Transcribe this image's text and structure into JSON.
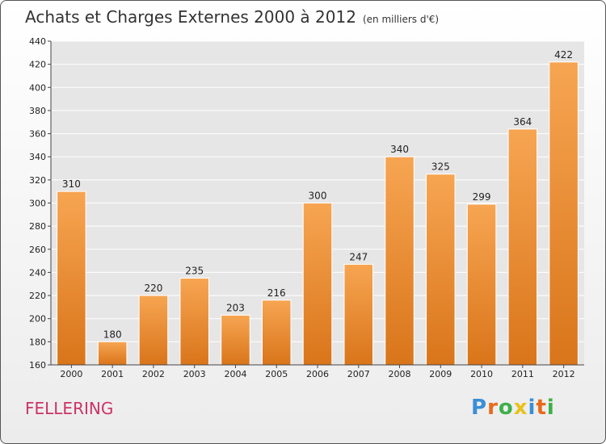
{
  "chart_data": {
    "type": "bar",
    "title": "Achats et Charges Externes 2000 à 2012",
    "subtitle": "(en milliers d'€)",
    "categories": [
      "2000",
      "2001",
      "2002",
      "2003",
      "2004",
      "2005",
      "2006",
      "2007",
      "2008",
      "2009",
      "2010",
      "2011",
      "2012"
    ],
    "values": [
      310,
      180,
      220,
      235,
      203,
      216,
      300,
      247,
      340,
      325,
      299,
      364,
      422
    ],
    "ylim": [
      160,
      440
    ],
    "yticks": [
      160,
      180,
      200,
      220,
      240,
      260,
      280,
      300,
      320,
      340,
      360,
      380,
      400,
      420,
      440
    ],
    "grid": true,
    "bar_color_top": "#f7a552",
    "bar_color_bottom": "#d9751a"
  },
  "footer": {
    "city": "FELLERING",
    "logo_letters": [
      "P",
      "r",
      "o",
      "x",
      "i",
      "t",
      "i"
    ],
    "logo_colors": [
      "#3a8fd6",
      "#e86a1a",
      "#3db04a",
      "#e8c21a",
      "#3a8fd6",
      "#e86a1a",
      "#3db04a"
    ]
  }
}
